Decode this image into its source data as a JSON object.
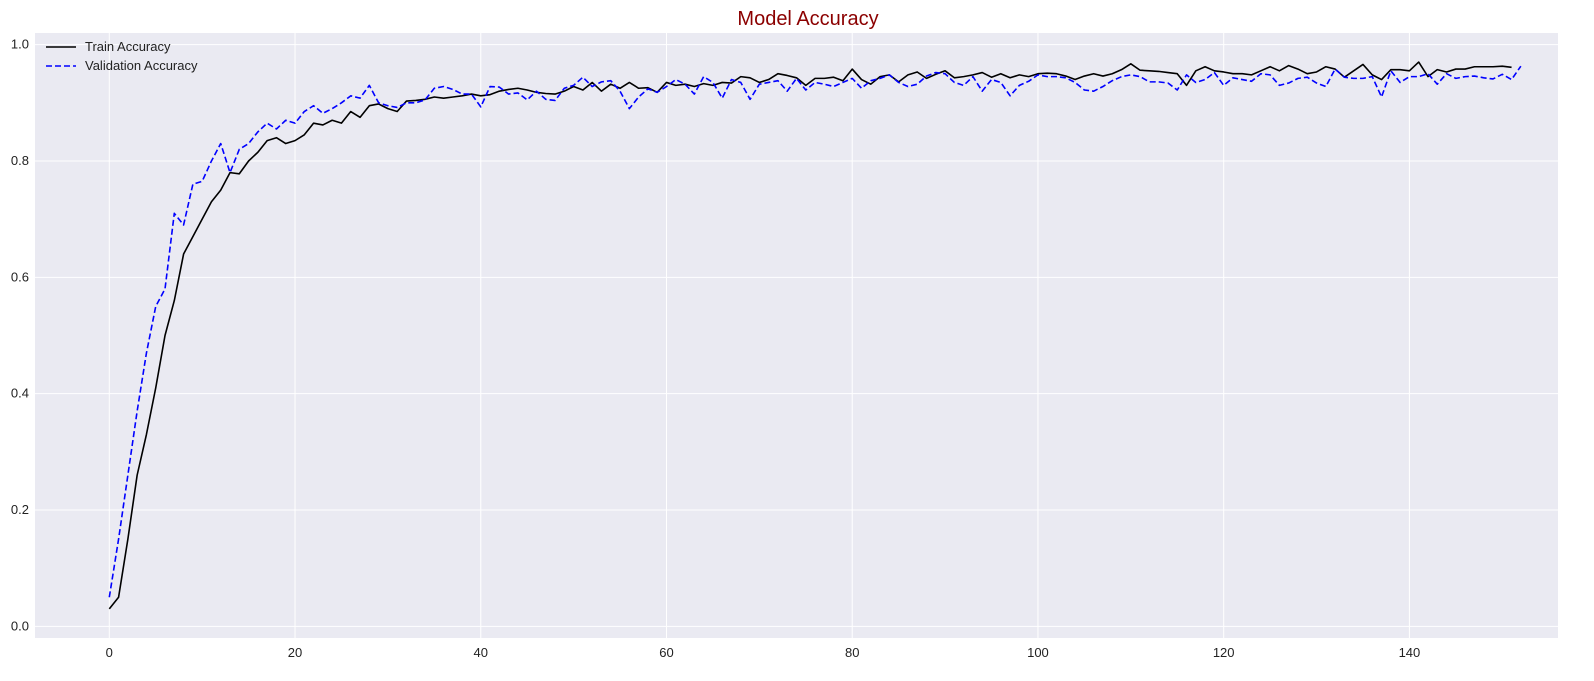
{
  "chart_data": {
    "type": "line",
    "title": "Model Accuracy",
    "title_color": "#8b0000",
    "xlabel": "",
    "ylabel": "",
    "xlim": [
      -8,
      156
    ],
    "ylim": [
      -0.02,
      1.02
    ],
    "xticks": [
      0,
      20,
      40,
      60,
      80,
      100,
      120,
      140
    ],
    "yticks": [
      0.0,
      0.2,
      0.4,
      0.6,
      0.8,
      1.0
    ],
    "grid": true,
    "legend_position": "top-left",
    "background_color": "#eaeaf2",
    "series": [
      {
        "name": "Train Accuracy",
        "color": "#000000",
        "dash": "solid",
        "x_start": 0,
        "values": [
          0.03,
          0.05,
          0.15,
          0.26,
          0.33,
          0.41,
          0.5,
          0.56,
          0.64,
          0.67,
          0.7,
          0.73,
          0.75,
          0.78,
          0.778,
          0.8,
          0.815,
          0.835,
          0.84,
          0.83,
          0.835,
          0.845,
          0.865,
          0.862,
          0.87,
          0.865,
          0.885,
          0.875,
          0.895,
          0.898,
          0.89,
          0.885,
          0.903,
          0.904,
          0.906,
          0.91,
          0.908,
          0.91,
          0.912,
          0.915,
          0.912,
          0.914,
          0.92,
          0.923,
          0.925,
          0.922,
          0.918,
          0.916,
          0.915,
          0.92,
          0.928,
          0.922,
          0.935,
          0.92,
          0.932,
          0.925,
          0.935,
          0.925,
          0.926,
          0.918,
          0.935,
          0.93,
          0.932,
          0.928,
          0.933,
          0.93,
          0.935,
          0.934,
          0.945,
          0.943,
          0.935,
          0.94,
          0.95,
          0.947,
          0.943,
          0.93,
          0.942,
          0.942,
          0.944,
          0.938,
          0.958,
          0.94,
          0.932,
          0.945,
          0.948,
          0.936,
          0.948,
          0.953,
          0.942,
          0.949,
          0.955,
          0.943,
          0.945,
          0.948,
          0.952,
          0.944,
          0.95,
          0.943,
          0.948,
          0.945,
          0.95,
          0.951,
          0.95,
          0.946,
          0.94,
          0.946,
          0.95,
          0.946,
          0.95,
          0.957,
          0.967,
          0.956,
          0.955,
          0.954,
          0.952,
          0.95,
          0.93,
          0.955,
          0.962,
          0.955,
          0.953,
          0.95,
          0.95,
          0.948,
          0.955,
          0.962,
          0.955,
          0.964,
          0.958,
          0.95,
          0.953,
          0.962,
          0.958,
          0.944,
          0.955,
          0.966,
          0.948,
          0.94,
          0.957,
          0.957,
          0.955,
          0.97,
          0.945,
          0.957,
          0.953,
          0.958,
          0.958,
          0.962,
          0.962,
          0.962,
          0.963,
          0.961
        ]
      },
      {
        "name": "Validation Accuracy",
        "color": "#0000ff",
        "dash": "dashed",
        "x_start": 0,
        "values": [
          0.05,
          0.15,
          0.26,
          0.37,
          0.47,
          0.55,
          0.58,
          0.71,
          0.69,
          0.76,
          0.765,
          0.8,
          0.83,
          0.78,
          0.82,
          0.83,
          0.85,
          0.865,
          0.855,
          0.87,
          0.865,
          0.885,
          0.895,
          0.882,
          0.89,
          0.9,
          0.912,
          0.908,
          0.93,
          0.9,
          0.895,
          0.892,
          0.9,
          0.9,
          0.905,
          0.925,
          0.928,
          0.923,
          0.915,
          0.915,
          0.893,
          0.928,
          0.927,
          0.915,
          0.917,
          0.905,
          0.92,
          0.906,
          0.904,
          0.925,
          0.93,
          0.944,
          0.928,
          0.936,
          0.938,
          0.92,
          0.89,
          0.91,
          0.924,
          0.918,
          0.928,
          0.94,
          0.932,
          0.915,
          0.945,
          0.935,
          0.908,
          0.94,
          0.935,
          0.906,
          0.932,
          0.935,
          0.938,
          0.92,
          0.942,
          0.922,
          0.935,
          0.932,
          0.928,
          0.935,
          0.942,
          0.925,
          0.938,
          0.942,
          0.948,
          0.935,
          0.928,
          0.932,
          0.946,
          0.952,
          0.95,
          0.935,
          0.93,
          0.945,
          0.92,
          0.94,
          0.935,
          0.912,
          0.93,
          0.937,
          0.948,
          0.945,
          0.945,
          0.943,
          0.935,
          0.922,
          0.92,
          0.928,
          0.938,
          0.945,
          0.948,
          0.945,
          0.936,
          0.936,
          0.934,
          0.922,
          0.948,
          0.935,
          0.94,
          0.952,
          0.93,
          0.943,
          0.94,
          0.937,
          0.95,
          0.948,
          0.93,
          0.934,
          0.942,
          0.944,
          0.934,
          0.928,
          0.958,
          0.944,
          0.942,
          0.942,
          0.945,
          0.91,
          0.955,
          0.935,
          0.945,
          0.945,
          0.95,
          0.932,
          0.95,
          0.942,
          0.945,
          0.946,
          0.943,
          0.941,
          0.949,
          0.94,
          0.963
        ]
      }
    ]
  }
}
